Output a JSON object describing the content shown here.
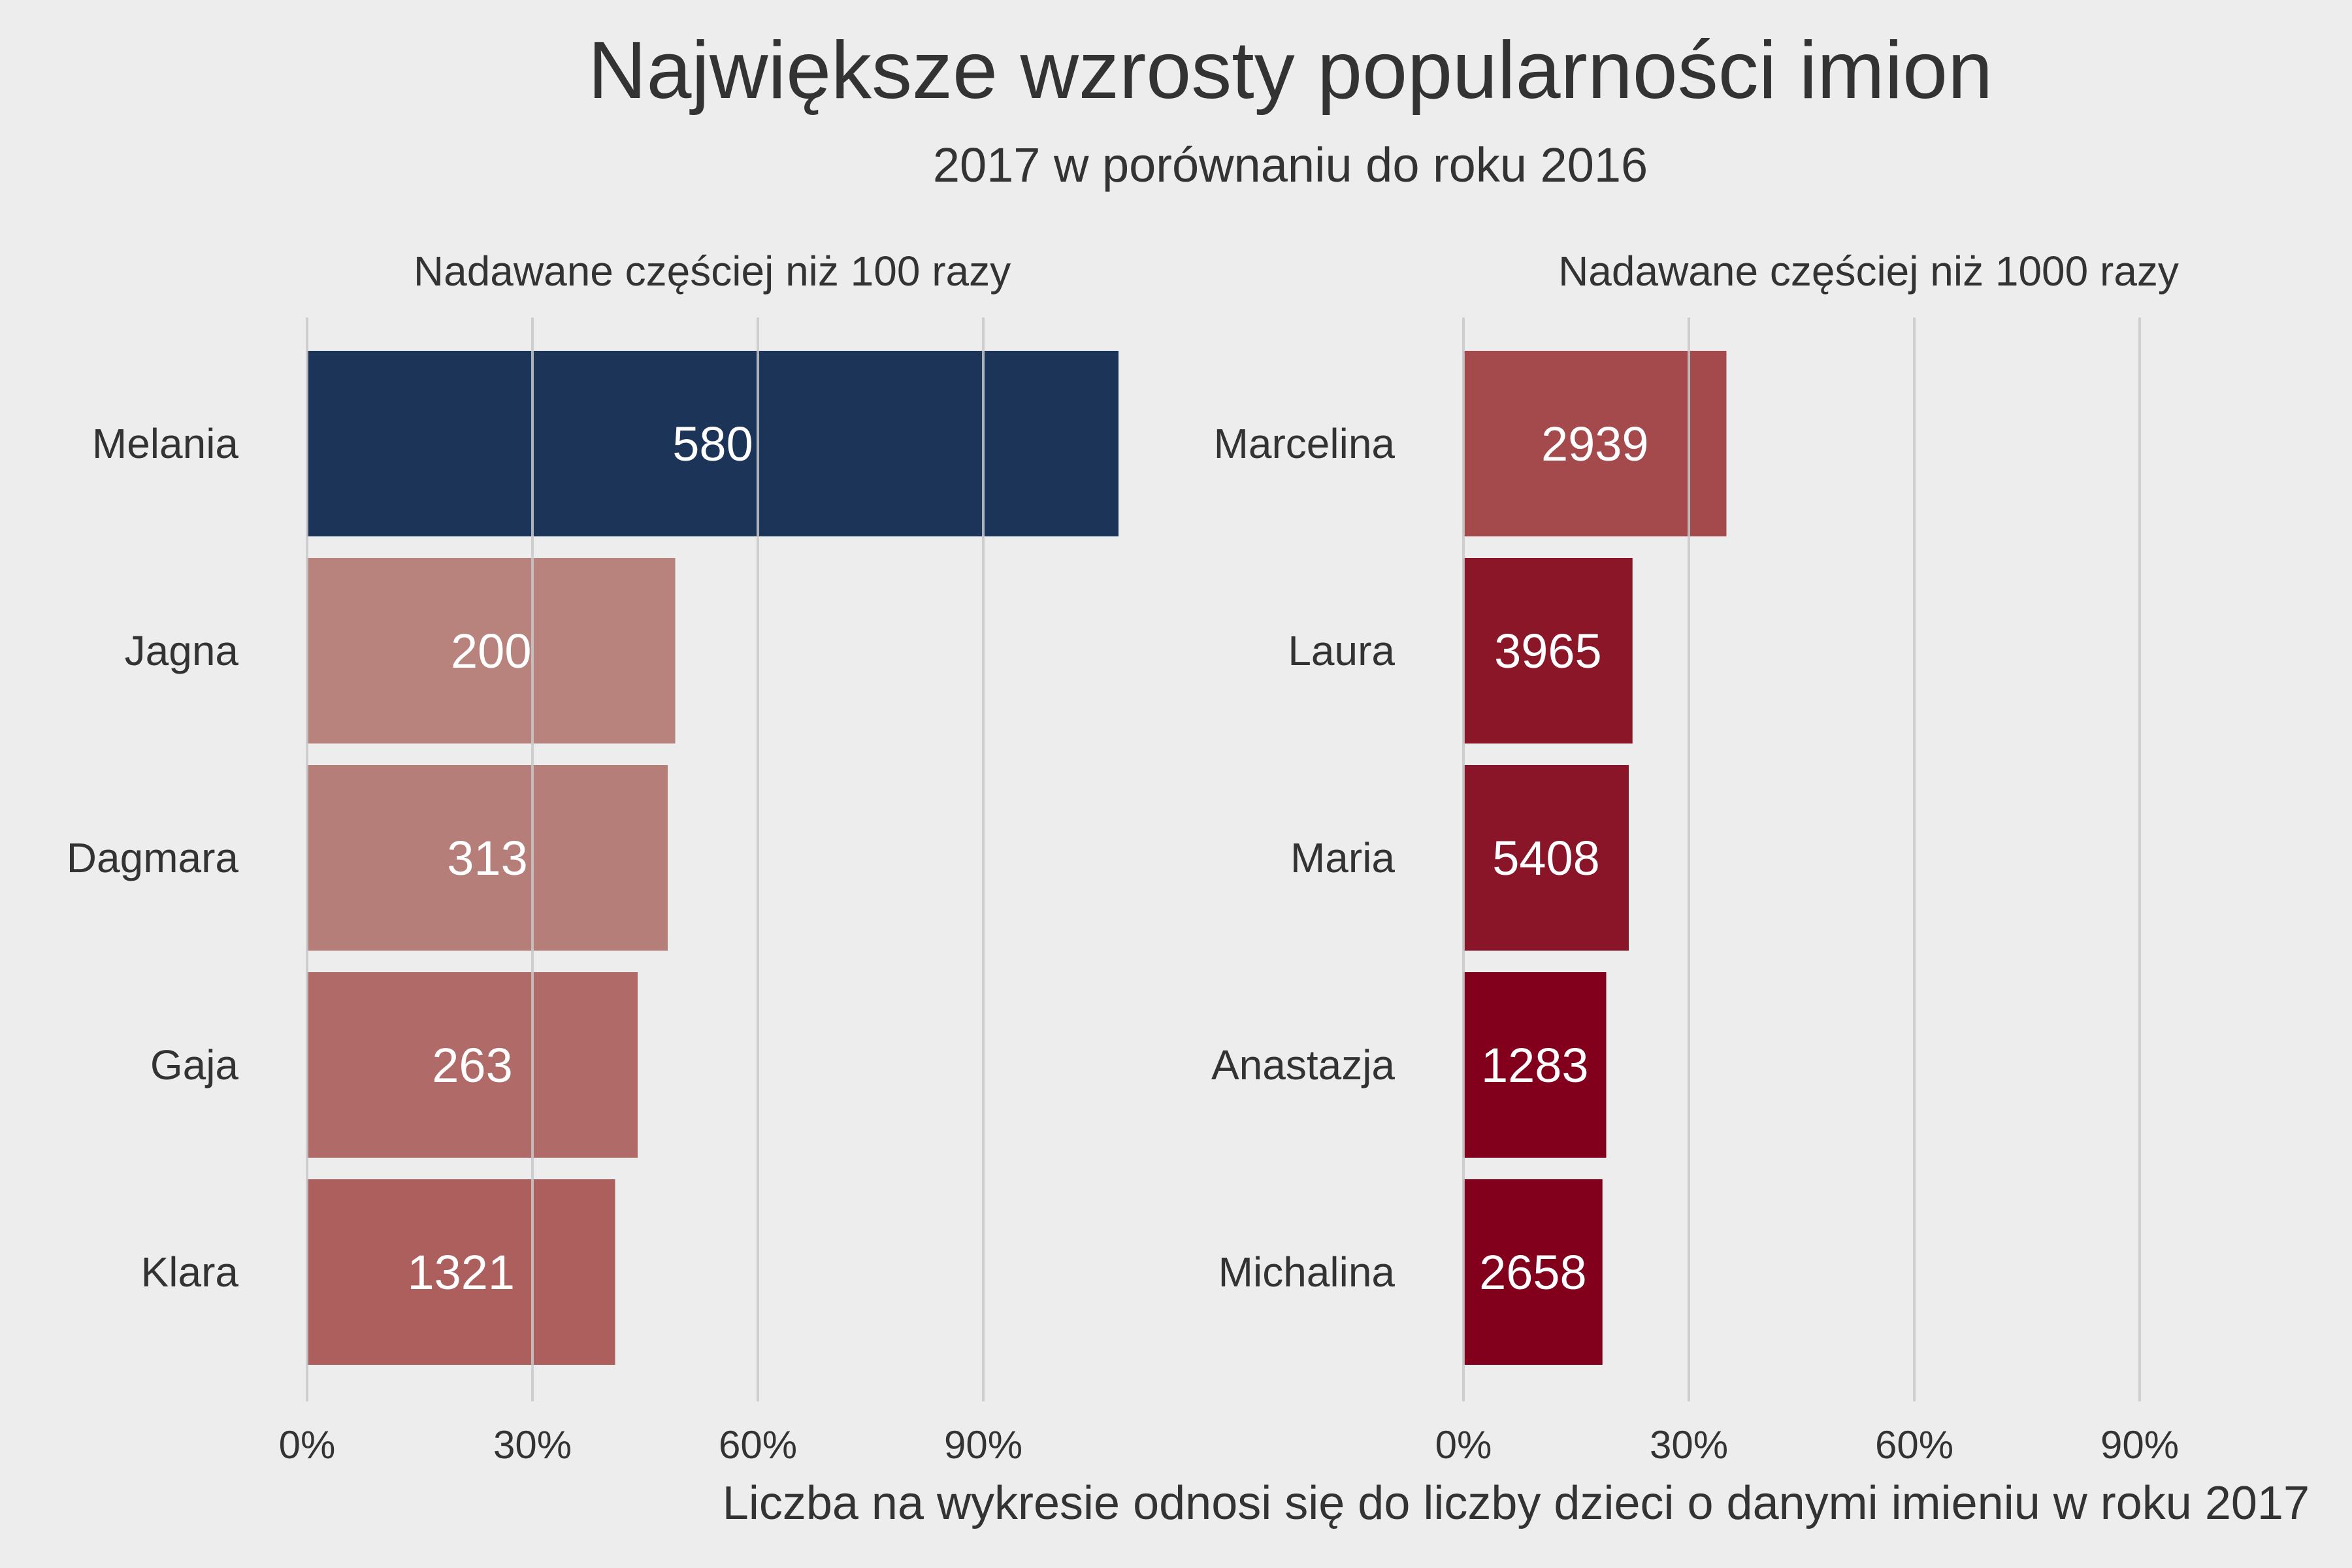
{
  "chart_data": {
    "type": "bar",
    "orientation": "horizontal",
    "title": "Największe wzrosty popularności imion",
    "subtitle": "2017 w porównaniu do roku 2016",
    "footnote": "Liczba na wykresie odnosi się do liczby dzieci o danymi imieniu w roku 2017",
    "grid": true,
    "xticks": [
      "0%",
      "30%",
      "60%",
      "90%"
    ],
    "panels": [
      {
        "title": "Nadawane częściej niż 100 razy",
        "xlim": [
          0,
          110
        ],
        "categories": [
          "Melania",
          "Jagna",
          "Dagmara",
          "Gaja",
          "Klara"
        ],
        "values": [
          108,
          49,
          48,
          44,
          41
        ],
        "labels": [
          "580",
          "200",
          "313",
          "263",
          "1321"
        ],
        "colors": [
          "#1d3459",
          "#b8827d",
          "#b57e79",
          "#b06b68",
          "#ad5f5d"
        ]
      },
      {
        "title": "Nadawane częściej niż 1000 razy",
        "xlim": [
          0,
          110
        ],
        "categories": [
          "Marcelina",
          "Laura",
          "Maria",
          "Anastazja",
          "Michalina"
        ],
        "values": [
          35,
          22.5,
          22,
          19,
          18.5
        ],
        "labels": [
          "2939",
          "3965",
          "5408",
          "1283",
          "2658"
        ],
        "colors": [
          "#a54a4c",
          "#8b1627",
          "#8a1528",
          "#83001c",
          "#83001c"
        ]
      }
    ]
  }
}
